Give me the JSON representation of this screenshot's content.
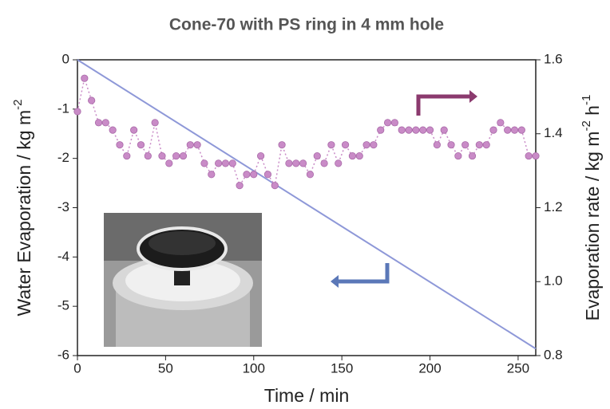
{
  "chart_data": {
    "type": "line",
    "title": "Cone-70 with PS ring in 4 mm hole",
    "xlabel": "Time / min",
    "ylabel": [
      {
        "text": "Water Evaporation / kg m"
      },
      {
        "text": "-2",
        "sup": true
      }
    ],
    "y2label": [
      {
        "text": "Evaporation rate / kg m"
      },
      {
        "text": "-2",
        "sup": true
      },
      {
        "text": " h"
      },
      {
        "text": "-1",
        "sup": true
      }
    ],
    "xlim": [
      0,
      260
    ],
    "xticks": [
      0,
      50,
      100,
      150,
      200,
      250
    ],
    "ylim": [
      -6,
      0
    ],
    "yticks": [
      0,
      -1,
      -2,
      -3,
      -4,
      -5,
      -6
    ],
    "y2lim": [
      0.8,
      1.6
    ],
    "y2ticks": [
      0.8,
      {
        "value": 1,
        "label": "1.0"
      },
      1.2,
      1.4,
      1.6
    ],
    "series": [
      {
        "type": "line",
        "axis": "y",
        "color": "#8e98d8",
        "x": [
          0,
          260
        ],
        "values": [
          0,
          -5.86
        ]
      },
      {
        "type": "scatter",
        "axis": "y2",
        "color": "#c98bc7",
        "x": [
          0,
          4,
          8,
          12,
          16,
          20,
          24,
          28,
          32,
          36,
          40,
          44,
          48,
          52,
          56,
          60,
          64,
          68,
          72,
          76,
          80,
          84,
          88,
          92,
          96,
          100,
          104,
          108,
          112,
          116,
          120,
          124,
          128,
          132,
          136,
          140,
          144,
          148,
          152,
          156,
          160,
          164,
          168,
          172,
          176,
          180,
          184,
          188,
          192,
          196,
          200,
          204,
          208,
          212,
          216,
          220,
          224,
          228,
          232,
          236,
          240,
          244,
          248,
          252,
          256,
          260
        ],
        "values": [
          1.46,
          1.55,
          1.49,
          1.43,
          1.43,
          1.41,
          1.37,
          1.34,
          1.41,
          1.37,
          1.34,
          1.43,
          1.34,
          1.32,
          1.34,
          1.34,
          1.37,
          1.37,
          1.32,
          1.29,
          1.32,
          1.32,
          1.32,
          1.26,
          1.29,
          1.29,
          1.34,
          1.29,
          1.26,
          1.37,
          1.32,
          1.32,
          1.32,
          1.29,
          1.34,
          1.32,
          1.37,
          1.32,
          1.37,
          1.34,
          1.34,
          1.37,
          1.37,
          1.41,
          1.43,
          1.43,
          1.41,
          1.41,
          1.41,
          1.41,
          1.41,
          1.37,
          1.41,
          1.37,
          1.34,
          1.37,
          1.34,
          1.37,
          1.37,
          1.41,
          1.43,
          1.41,
          1.41,
          1.41,
          1.34,
          1.34
        ]
      }
    ]
  }
}
